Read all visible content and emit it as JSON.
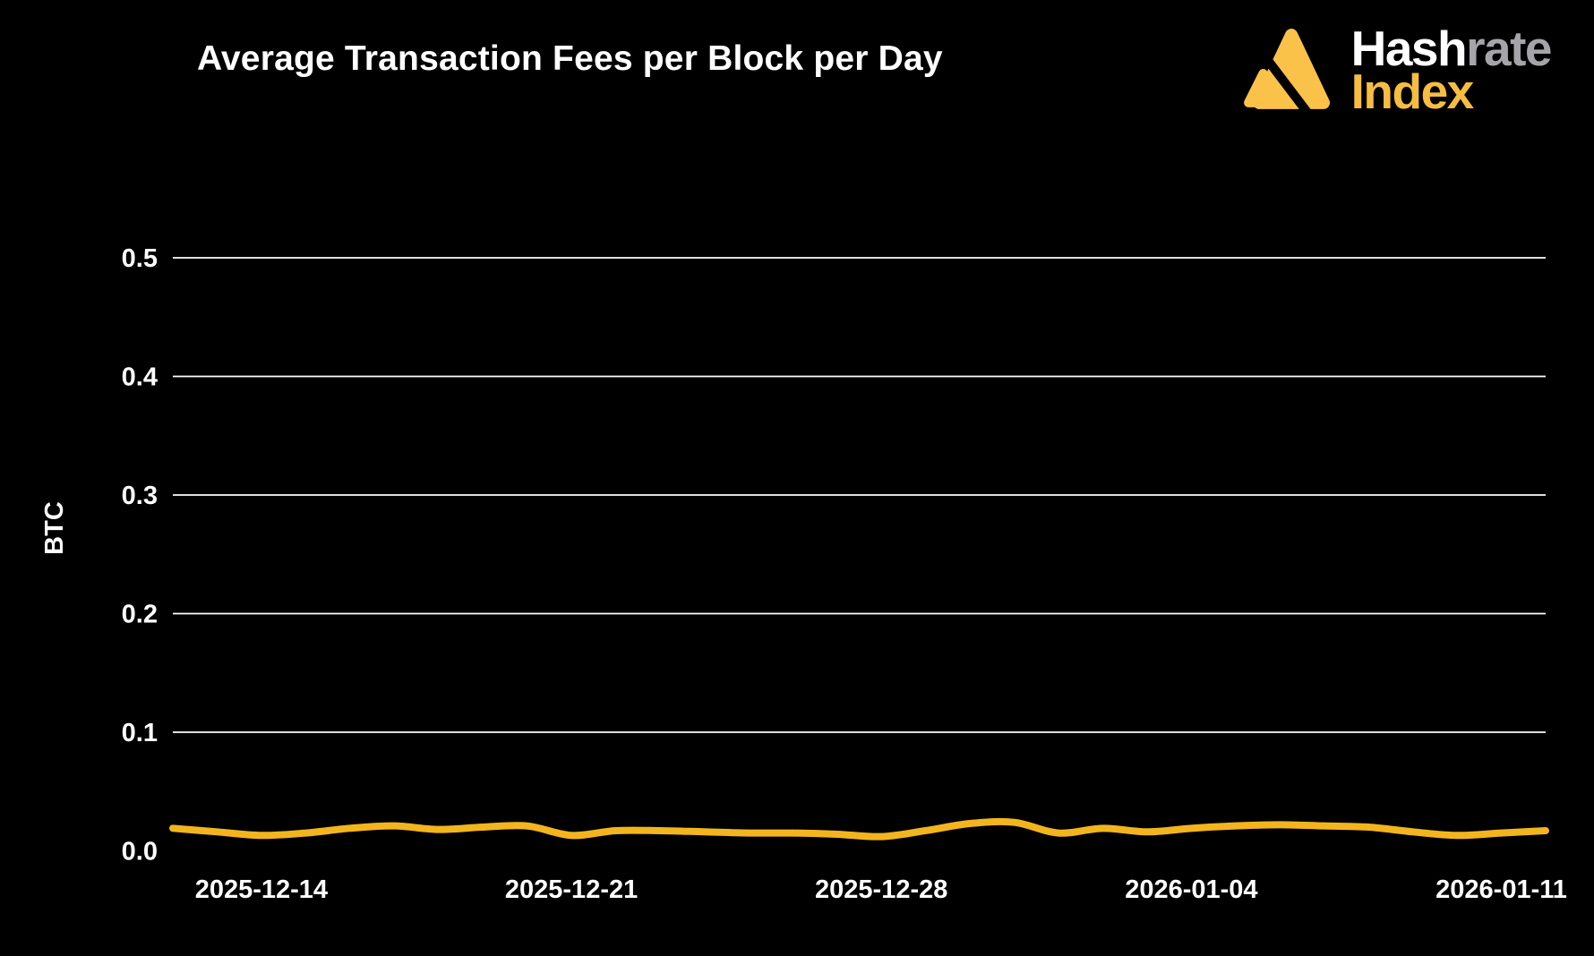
{
  "header": {
    "title": "Average Transaction Fees per Block per Day"
  },
  "logo": {
    "word_top_part1": "Hash",
    "word_top_part2": "rate",
    "word_bottom": "Index",
    "triangle_icon_color": "#FBC249",
    "word_bottom_color": "#F6BD41"
  },
  "chart_data": {
    "type": "line",
    "title": "Average Transaction Fees per Block per Day",
    "xlabel": "",
    "ylabel": "BTC",
    "grid": true,
    "legend": false,
    "background_color": "#000000",
    "grid_color": "#FFFFFF",
    "line_color": "#F3B51D",
    "text_color": "#FFFFFF",
    "ylim": [
      0.0,
      0.55
    ],
    "y_ticks": [
      0.0,
      0.1,
      0.2,
      0.3,
      0.4,
      0.5
    ],
    "y_tick_labels": [
      "0.0",
      "0.1",
      "0.2",
      "0.3",
      "0.4",
      "0.5"
    ],
    "x_tick_labels": [
      "2025-12-14",
      "2025-12-21",
      "2025-12-28",
      "2026-01-04",
      "2026-01-11"
    ],
    "x": [
      "2025-12-12",
      "2025-12-13",
      "2025-12-14",
      "2025-12-15",
      "2025-12-16",
      "2025-12-17",
      "2025-12-18",
      "2025-12-19",
      "2025-12-20",
      "2025-12-21",
      "2025-12-22",
      "2025-12-23",
      "2025-12-24",
      "2025-12-25",
      "2025-12-26",
      "2025-12-27",
      "2025-12-28",
      "2025-12-29",
      "2025-12-30",
      "2025-12-31",
      "2026-01-01",
      "2026-01-02",
      "2026-01-03",
      "2026-01-04",
      "2026-01-05",
      "2026-01-06",
      "2026-01-07",
      "2026-01-08",
      "2026-01-09",
      "2026-01-10",
      "2026-01-11",
      "2026-01-12"
    ],
    "series": [
      {
        "name": "Average transaction fees per block",
        "unit": "BTC",
        "values": [
          0.019,
          0.016,
          0.013,
          0.015,
          0.019,
          0.021,
          0.018,
          0.02,
          0.021,
          0.013,
          0.017,
          0.017,
          0.016,
          0.015,
          0.015,
          0.014,
          0.012,
          0.017,
          0.023,
          0.024,
          0.015,
          0.019,
          0.016,
          0.019,
          0.021,
          0.022,
          0.021,
          0.02,
          0.016,
          0.013,
          0.015,
          0.017
        ]
      }
    ]
  }
}
